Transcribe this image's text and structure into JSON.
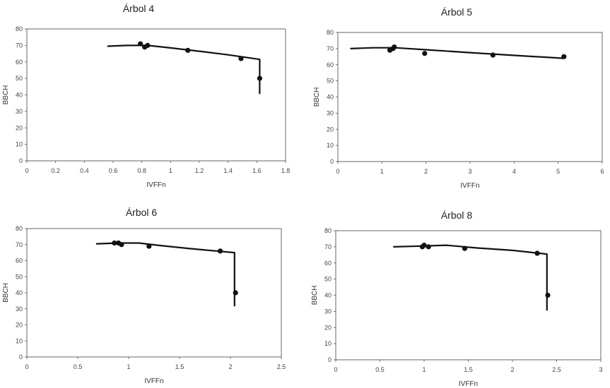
{
  "chart_data": [
    {
      "type": "scatter",
      "title": "Árbol 4",
      "xlabel": "IVFFn",
      "ylabel": "BBCH",
      "xlim": [
        0,
        1.8
      ],
      "ylim": [
        0,
        80
      ],
      "xticks": [
        0,
        0.2,
        0.4,
        0.6,
        0.8,
        1,
        1.2,
        1.4,
        1.6,
        1.8
      ],
      "xtick_labels": [
        "0",
        "0.2",
        "0.4",
        "0.6",
        "0.8",
        "1",
        "1.2",
        "1.4",
        "1.6",
        "1.8"
      ],
      "yticks": [
        0,
        10,
        20,
        30,
        40,
        50,
        60,
        70,
        80
      ],
      "ytick_labels": [
        "0",
        "10",
        "20",
        "30",
        "40",
        "50",
        "60",
        "70",
        "80"
      ],
      "grid": false,
      "points": {
        "x": [
          0.79,
          0.82,
          0.84,
          1.12,
          1.49,
          1.62
        ],
        "y": [
          71,
          69,
          70,
          67,
          62,
          50
        ]
      },
      "curve": {
        "x": [
          0.56,
          0.7,
          0.84,
          1.0,
          1.2,
          1.4,
          1.62,
          1.62,
          1.62
        ],
        "y": [
          69.5,
          70,
          70,
          68.5,
          66.5,
          64.3,
          61.5,
          50,
          40.5
        ]
      }
    },
    {
      "type": "scatter",
      "title": "Árbol 5",
      "xlabel": "IVFFn",
      "ylabel": "BBCH",
      "xlim": [
        0,
        6
      ],
      "ylim": [
        0,
        80
      ],
      "xticks": [
        0,
        1,
        2,
        3,
        4,
        5,
        6
      ],
      "xtick_labels": [
        "0",
        "1",
        "2",
        "3",
        "4",
        "5",
        "6"
      ],
      "yticks": [
        0,
        10,
        20,
        30,
        40,
        50,
        60,
        70,
        80
      ],
      "ytick_labels": [
        "0",
        "10",
        "20",
        "30",
        "40",
        "50",
        "60",
        "70",
        "80"
      ],
      "grid": false,
      "points": {
        "x": [
          1.18,
          1.25,
          1.28,
          1.97,
          3.52,
          5.13
        ],
        "y": [
          69,
          70,
          71,
          67,
          66,
          65
        ]
      },
      "curve": {
        "x": [
          0.28,
          0.8,
          1.3,
          2.0,
          3.0,
          4.0,
          5.12
        ],
        "y": [
          70,
          70.5,
          70.5,
          69.3,
          67.5,
          65.8,
          64
        ]
      }
    },
    {
      "type": "scatter",
      "title": "Árbol 6",
      "xlabel": "IVFFn",
      "ylabel": "BBCH",
      "xlim": [
        0,
        2.5
      ],
      "ylim": [
        0,
        80
      ],
      "xticks": [
        0,
        0.5,
        1,
        1.5,
        2,
        2.5
      ],
      "xtick_labels": [
        "0",
        "0.5",
        "1",
        "1.5",
        "2",
        "2.5"
      ],
      "yticks": [
        0,
        10,
        20,
        30,
        40,
        50,
        60,
        70,
        80
      ],
      "ytick_labels": [
        "0",
        "10",
        "20",
        "30",
        "40",
        "50",
        "60",
        "70",
        "80"
      ],
      "grid": false,
      "points": {
        "x": [
          0.86,
          0.9,
          0.93,
          1.2,
          1.9,
          2.05
        ],
        "y": [
          71,
          71,
          70,
          69,
          66,
          40
        ]
      },
      "curve": {
        "x": [
          0.68,
          0.9,
          1.1,
          1.3,
          1.6,
          1.9,
          2.04,
          2.04,
          2.04
        ],
        "y": [
          70.5,
          71,
          71,
          69.5,
          67.5,
          65.8,
          65,
          40,
          31.5
        ]
      }
    },
    {
      "type": "scatter",
      "title": "Árbol 8",
      "xlabel": "IVFFn",
      "ylabel": "BBCH",
      "xlim": [
        0,
        3
      ],
      "ylim": [
        0,
        80
      ],
      "xticks": [
        0,
        0.5,
        1,
        1.5,
        2,
        2.5,
        3
      ],
      "xtick_labels": [
        "0",
        "0.5",
        "1",
        "1.5",
        "2",
        "2.5",
        "3"
      ],
      "yticks": [
        0,
        10,
        20,
        30,
        40,
        50,
        60,
        70,
        80
      ],
      "ytick_labels": [
        "0",
        "10",
        "20",
        "30",
        "40",
        "50",
        "60",
        "70",
        "80"
      ],
      "grid": false,
      "points": {
        "x": [
          0.98,
          1.0,
          1.05,
          1.46,
          2.28,
          2.4
        ],
        "y": [
          70,
          71,
          70,
          69,
          66,
          40
        ]
      },
      "curve": {
        "x": [
          0.65,
          1.0,
          1.25,
          1.6,
          2.0,
          2.39,
          2.39,
          2.39
        ],
        "y": [
          70,
          70.5,
          71,
          69.3,
          67.8,
          65.5,
          40,
          30.5
        ]
      }
    }
  ]
}
